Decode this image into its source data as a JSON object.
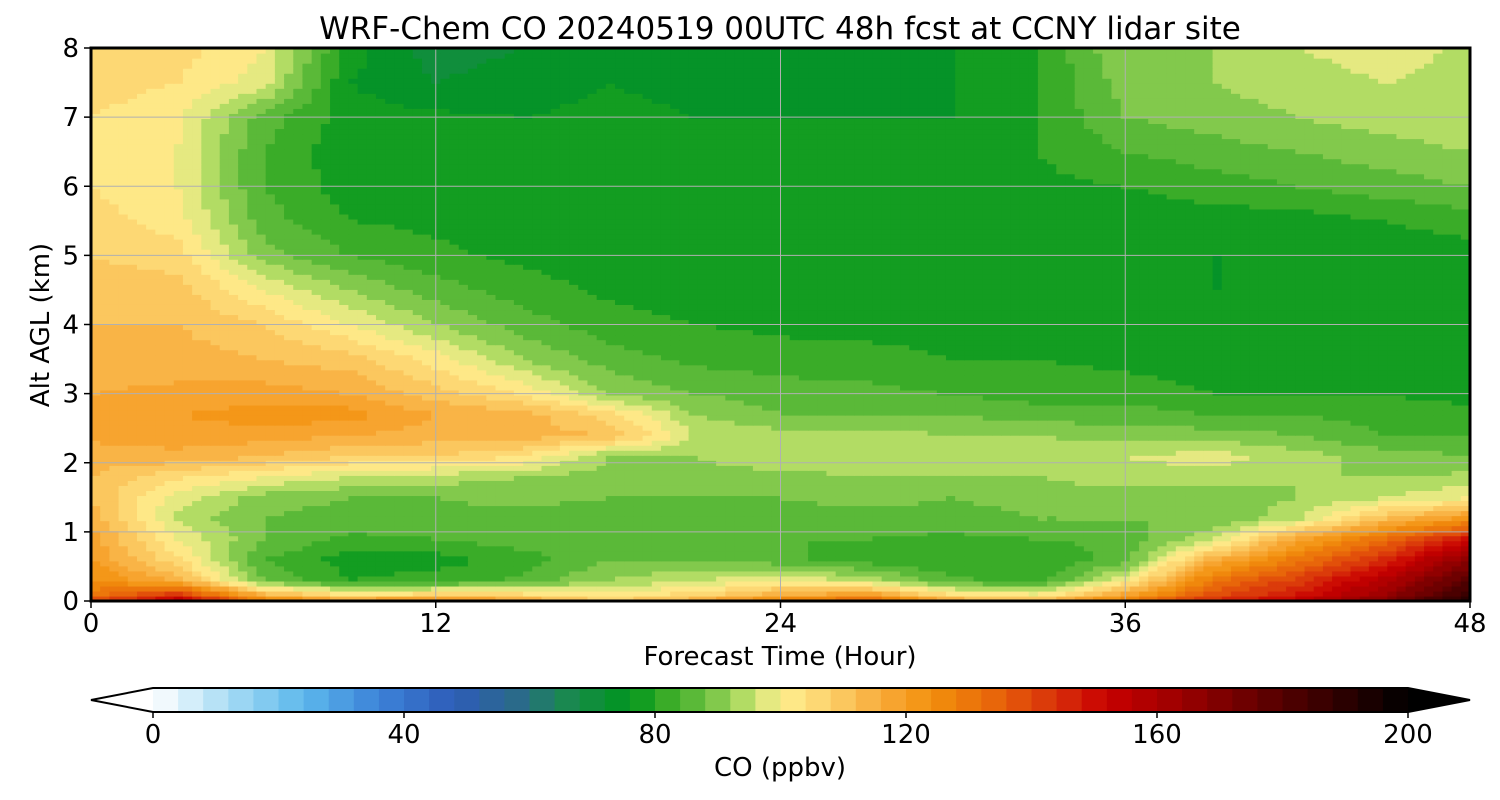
{
  "chart_data": {
    "type": "heatmap",
    "title": "WRF-Chem CO  20240519 00UTC 48h fcst at CCNY lidar site",
    "xlabel": "Forecast Time (Hour)",
    "ylabel": "Alt AGL (km)",
    "xlim": [
      0,
      48
    ],
    "ylim": [
      0,
      8
    ],
    "xticks": [
      "0",
      "12",
      "24",
      "36",
      "48"
    ],
    "yticks": [
      "0",
      "1",
      "2",
      "3",
      "4",
      "5",
      "6",
      "7",
      "8"
    ],
    "grid": true,
    "x": [
      0,
      3,
      6,
      9,
      12,
      15,
      18,
      21,
      24,
      27,
      30,
      33,
      36,
      39,
      42,
      45,
      48
    ],
    "y": [
      0,
      0.05,
      0.3,
      0.6,
      0.9,
      1.2,
      1.5,
      1.8,
      2.1,
      2.4,
      2.7,
      3.0,
      3.5,
      4.0,
      4.5,
      5.0,
      5.5,
      6.0,
      6.5,
      7.0,
      7.5,
      8.0
    ],
    "values": [
      [
        150,
        160,
        135,
        130,
        140,
        125,
        115,
        125,
        140,
        145,
        125,
        120,
        135,
        150,
        160,
        175,
        195
      ],
      [
        130,
        150,
        120,
        108,
        112,
        110,
        103,
        108,
        118,
        125,
        108,
        105,
        122,
        140,
        150,
        165,
        190
      ],
      [
        125,
        115,
        88,
        80,
        82,
        85,
        92,
        96,
        100,
        95,
        85,
        82,
        100,
        130,
        142,
        158,
        180
      ],
      [
        120,
        105,
        84,
        78,
        78,
        82,
        88,
        88,
        85,
        82,
        80,
        80,
        86,
        115,
        130,
        145,
        168
      ],
      [
        118,
        100,
        88,
        83,
        84,
        86,
        86,
        84,
        84,
        84,
        83,
        84,
        85,
        95,
        118,
        132,
        150
      ],
      [
        115,
        95,
        88,
        86,
        86,
        86,
        84,
        86,
        86,
        86,
        86,
        88,
        88,
        88,
        95,
        112,
        122
      ],
      [
        112,
        98,
        90,
        88,
        88,
        90,
        88,
        88,
        88,
        90,
        88,
        90,
        90,
        90,
        92,
        96,
        100
      ],
      [
        112,
        105,
        100,
        96,
        94,
        92,
        90,
        90,
        90,
        92,
        92,
        92,
        94,
        94,
        92,
        92,
        93
      ],
      [
        114,
        115,
        112,
        108,
        108,
        104,
        92,
        92,
        96,
        96,
        96,
        95,
        96,
        98,
        94,
        90,
        88
      ],
      [
        117,
        118,
        118,
        116,
        114,
        114,
        112,
        96,
        94,
        94,
        92,
        92,
        90,
        90,
        88,
        84,
        84
      ],
      [
        118,
        120,
        122,
        122,
        116,
        114,
        106,
        92,
        88,
        88,
        88,
        86,
        86,
        84,
        84,
        82,
        82
      ],
      [
        116,
        117,
        118,
        116,
        110,
        104,
        92,
        88,
        86,
        85,
        84,
        82,
        82,
        80,
        80,
        80,
        78
      ],
      [
        114,
        114,
        112,
        110,
        102,
        92,
        86,
        83,
        82,
        82,
        80,
        80,
        79,
        78,
        78,
        77,
        77
      ],
      [
        112,
        112,
        108,
        100,
        92,
        86,
        82,
        80,
        79,
        78,
        78,
        77,
        77,
        77,
        77,
        76,
        76
      ],
      [
        110,
        110,
        100,
        92,
        86,
        82,
        79,
        78,
        77,
        77,
        77,
        77,
        76,
        76,
        76,
        76,
        76
      ],
      [
        108,
        106,
        90,
        84,
        81,
        79,
        78,
        78,
        77,
        78,
        77,
        77,
        77,
        76,
        76,
        77,
        78
      ],
      [
        106,
        102,
        86,
        80,
        79,
        78,
        78,
        78,
        77,
        78,
        78,
        78,
        77,
        78,
        78,
        80,
        82
      ],
      [
        104,
        100,
        84,
        78,
        78,
        79,
        78,
        78,
        78,
        78,
        78,
        79,
        80,
        82,
        84,
        86,
        88
      ],
      [
        103,
        100,
        84,
        77,
        77,
        78,
        77,
        76,
        76,
        76,
        77,
        80,
        84,
        86,
        88,
        90,
        92
      ],
      [
        104,
        101,
        86,
        78,
        77,
        76,
        77,
        76,
        76,
        76,
        76,
        80,
        88,
        90,
        92,
        94,
        95
      ],
      [
        106,
        104,
        98,
        76,
        72,
        74,
        76,
        75,
        75,
        75,
        76,
        80,
        90,
        92,
        94,
        96,
        95
      ],
      [
        108,
        106,
        100,
        78,
        70,
        72,
        76,
        74,
        74,
        75,
        76,
        80,
        92,
        92,
        96,
        98,
        95
      ]
    ],
    "colorbar": {
      "label": "CO  (ppbv)",
      "min": 0,
      "max": 200,
      "step": 4,
      "ticks": [
        "0",
        "40",
        "80",
        "120",
        "160",
        "200"
      ],
      "extend": "both",
      "stops": [
        [
          0,
          "#ffffff"
        ],
        [
          12,
          "#a8dcf4"
        ],
        [
          24,
          "#5cb8ec"
        ],
        [
          36,
          "#3c82d8"
        ],
        [
          48,
          "#2e5cb8"
        ],
        [
          58,
          "#2a6a8a"
        ],
        [
          66,
          "#1a8850"
        ],
        [
          76,
          "#00961e"
        ],
        [
          82,
          "#3aac28"
        ],
        [
          88,
          "#6ac040"
        ],
        [
          94,
          "#b2dc64"
        ],
        [
          100,
          "#fff090"
        ],
        [
          108,
          "#fcd06a"
        ],
        [
          116,
          "#f8aa3a"
        ],
        [
          124,
          "#f2900c"
        ],
        [
          134,
          "#e8660a"
        ],
        [
          144,
          "#d8300a"
        ],
        [
          152,
          "#c80000"
        ],
        [
          164,
          "#9a0000"
        ],
        [
          178,
          "#5c0000"
        ],
        [
          190,
          "#2a0000"
        ],
        [
          200,
          "#000000"
        ]
      ]
    }
  }
}
